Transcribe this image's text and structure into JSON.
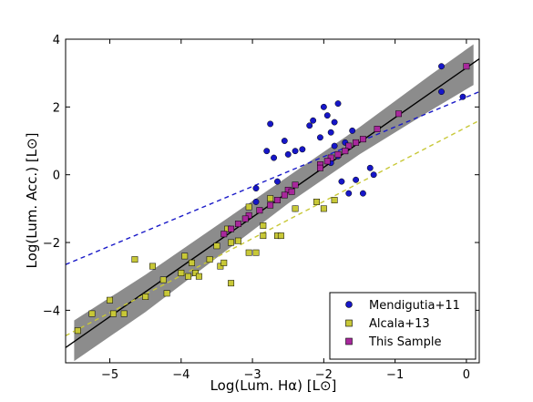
{
  "chart_data": {
    "type": "scatter",
    "xlabel": "Log(Lum. Hα) [L⊙]",
    "ylabel": "Log(Lum. Acc.) [L⊙]",
    "xlim": [
      -5.62,
      0.18
    ],
    "ylim": [
      -5.55,
      4.0
    ],
    "xticks": [
      -5,
      -4,
      -3,
      -2,
      -1,
      0
    ],
    "yticks": [
      -4,
      -2,
      0,
      2,
      4
    ],
    "xtick_labels": [
      "−5",
      "−4",
      "−3",
      "−2",
      "−1",
      "0"
    ],
    "ytick_labels": [
      "−4",
      "−2",
      "0",
      "2",
      "4"
    ],
    "legend_position": "bottom-right",
    "series": [
      {
        "name": "Mendigutia+11",
        "marker": "circle",
        "color": "#1616c8",
        "points": [
          [
            -0.35,
            3.2
          ],
          [
            -0.35,
            2.45
          ],
          [
            -0.05,
            2.3
          ],
          [
            -1.35,
            0.2
          ],
          [
            -1.3,
            0.0
          ],
          [
            -1.45,
            -0.55
          ],
          [
            -1.6,
            1.3
          ],
          [
            -1.8,
            2.1
          ],
          [
            -1.85,
            1.55
          ],
          [
            -1.9,
            1.25
          ],
          [
            -1.95,
            1.75
          ],
          [
            -2.0,
            2.0
          ],
          [
            -2.05,
            1.1
          ],
          [
            -2.15,
            1.6
          ],
          [
            -2.2,
            1.45
          ],
          [
            -2.3,
            0.75
          ],
          [
            -2.4,
            0.7
          ],
          [
            -2.5,
            0.6
          ],
          [
            -2.55,
            1.0
          ],
          [
            -2.75,
            1.5
          ],
          [
            -2.7,
            0.5
          ],
          [
            -2.8,
            0.7
          ],
          [
            -2.95,
            -0.4
          ],
          [
            -2.95,
            -0.8
          ],
          [
            -2.65,
            -0.2
          ],
          [
            -2.4,
            -1.0
          ],
          [
            -1.8,
            0.55
          ],
          [
            -1.85,
            0.85
          ],
          [
            -1.9,
            0.35
          ],
          [
            -1.75,
            -0.2
          ],
          [
            -1.65,
            -0.55
          ],
          [
            -1.55,
            -0.15
          ],
          [
            -1.7,
            0.95
          ]
        ]
      },
      {
        "name": "Alcala+13",
        "marker": "square",
        "color": "#c8c837",
        "points": [
          [
            -5.45,
            -4.6
          ],
          [
            -5.25,
            -4.1
          ],
          [
            -5.0,
            -3.7
          ],
          [
            -4.95,
            -4.1
          ],
          [
            -4.8,
            -4.1
          ],
          [
            -4.65,
            -2.5
          ],
          [
            -4.5,
            -3.6
          ],
          [
            -4.4,
            -2.7
          ],
          [
            -4.25,
            -3.1
          ],
          [
            -4.2,
            -3.5
          ],
          [
            -4.0,
            -2.9
          ],
          [
            -3.95,
            -2.4
          ],
          [
            -3.9,
            -3.0
          ],
          [
            -3.85,
            -2.6
          ],
          [
            -3.8,
            -2.9
          ],
          [
            -3.75,
            -3.0
          ],
          [
            -3.6,
            -2.5
          ],
          [
            -3.5,
            -2.1
          ],
          [
            -3.45,
            -2.7
          ],
          [
            -3.4,
            -2.6
          ],
          [
            -3.3,
            -3.2
          ],
          [
            -3.3,
            -2.0
          ],
          [
            -3.2,
            -1.95
          ],
          [
            -3.05,
            -2.3
          ],
          [
            -2.95,
            -2.3
          ],
          [
            -2.85,
            -1.8
          ],
          [
            -2.65,
            -1.8
          ],
          [
            -2.6,
            -1.8
          ],
          [
            -2.4,
            -1.0
          ],
          [
            -2.0,
            -1.0
          ],
          [
            -2.1,
            -0.8
          ],
          [
            -1.85,
            -0.75
          ],
          [
            -3.05,
            -0.95
          ],
          [
            -2.85,
            -1.5
          ],
          [
            -2.75,
            -0.7
          ],
          [
            -3.35,
            -1.6
          ]
        ]
      },
      {
        "name": "This Sample",
        "marker": "square",
        "color": "#a8289c",
        "points": [
          [
            0.0,
            3.2
          ],
          [
            -0.95,
            1.8
          ],
          [
            -1.25,
            1.35
          ],
          [
            -1.45,
            1.05
          ],
          [
            -1.55,
            0.95
          ],
          [
            -1.65,
            0.85
          ],
          [
            -1.7,
            0.7
          ],
          [
            -1.8,
            0.6
          ],
          [
            -1.9,
            0.5
          ],
          [
            -1.95,
            0.4
          ],
          [
            -2.05,
            0.3
          ],
          [
            -2.05,
            0.2
          ],
          [
            -2.4,
            -0.3
          ],
          [
            -2.5,
            -0.45
          ],
          [
            -2.55,
            -0.6
          ],
          [
            -2.65,
            -0.75
          ],
          [
            -2.75,
            -0.9
          ],
          [
            -2.9,
            -1.05
          ],
          [
            -3.05,
            -1.2
          ],
          [
            -3.1,
            -1.3
          ],
          [
            -3.2,
            -1.45
          ],
          [
            -3.3,
            -1.6
          ],
          [
            -3.4,
            -1.75
          ],
          [
            -2.45,
            -0.5
          ]
        ]
      }
    ],
    "fits": [
      {
        "type": "line",
        "style": "solid",
        "color": "#000000",
        "x": [
          -5.62,
          0.18
        ],
        "y": [
          -5.1,
          3.42
        ]
      },
      {
        "type": "line",
        "style": "dashed",
        "color": "#1a1ac8",
        "x": [
          -5.62,
          0.18
        ],
        "y": [
          -2.65,
          2.45
        ]
      },
      {
        "type": "line",
        "style": "dashed",
        "color": "#c8c837",
        "x": [
          -5.62,
          0.18
        ],
        "y": [
          -4.75,
          1.6
        ]
      }
    ],
    "confidence_band": {
      "color": "#8c8c8c",
      "x": [
        -5.5,
        -4.5,
        -3.5,
        -2.5,
        -1.5,
        -0.5,
        0.1
      ],
      "upper": [
        -4.3,
        -2.95,
        -1.5,
        -0.05,
        1.4,
        2.95,
        3.85
      ],
      "lower": [
        -5.5,
        -4.05,
        -2.45,
        -0.85,
        0.6,
        1.9,
        2.65
      ]
    }
  }
}
